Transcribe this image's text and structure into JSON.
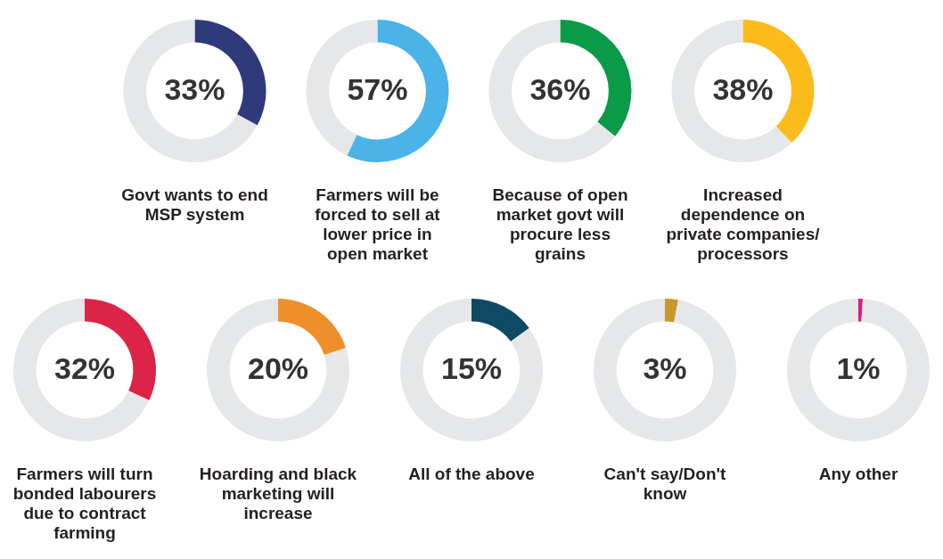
{
  "chart_data": [
    {
      "type": "donut",
      "title": "Govt wants to end MSP system",
      "categories": [
        null,
        null
      ],
      "values": [
        33,
        67
      ],
      "colors": [
        "#2e3a7a",
        "#e6e7e9"
      ],
      "value_labels": [
        "33%",
        null
      ],
      "legend": false
    },
    {
      "type": "donut",
      "title": "Farmers will be forced to sell at lower price in open market",
      "categories": [
        null,
        null
      ],
      "values": [
        57,
        43
      ],
      "colors": [
        "#4ab3e8",
        "#e6e7e9"
      ],
      "value_labels": [
        "57%",
        null
      ],
      "legend": false
    },
    {
      "type": "donut",
      "title": "Because of open market govt will procure less grains",
      "categories": [
        null,
        null
      ],
      "values": [
        36,
        64
      ],
      "colors": [
        "#0a9a48",
        "#e6e7e9"
      ],
      "value_labels": [
        "36%",
        null
      ],
      "legend": false
    },
    {
      "type": "donut",
      "title": "Increased dependence on private companies/ processors",
      "categories": [
        null,
        null
      ],
      "values": [
        38,
        62
      ],
      "colors": [
        "#fbbb1a",
        "#e6e7e9"
      ],
      "value_labels": [
        "38%",
        null
      ],
      "legend": false
    },
    {
      "type": "donut",
      "title": "Farmers will turn bonded labourers due to contract farming",
      "categories": [
        null,
        null
      ],
      "values": [
        32,
        68
      ],
      "colors": [
        "#dc2448",
        "#e6e7e9"
      ],
      "value_labels": [
        "32%",
        null
      ],
      "legend": false
    },
    {
      "type": "donut",
      "title": "Hoarding and black marketing will increase",
      "categories": [
        null,
        null
      ],
      "values": [
        20,
        80
      ],
      "colors": [
        "#ef8f2c",
        "#e6e7e9"
      ],
      "value_labels": [
        "20%",
        null
      ],
      "legend": false
    },
    {
      "type": "donut",
      "title": "All of the above",
      "categories": [
        null,
        null
      ],
      "values": [
        15,
        85
      ],
      "colors": [
        "#0e4a64",
        "#e6e7e9"
      ],
      "value_labels": [
        "15%",
        null
      ],
      "legend": false
    },
    {
      "type": "donut",
      "title": "Can't say/Don't know",
      "categories": [
        null,
        null
      ],
      "values": [
        3,
        97
      ],
      "colors": [
        "#c9982e",
        "#e6e7e9"
      ],
      "value_labels": [
        "3%",
        null
      ],
      "legend": false
    },
    {
      "type": "donut",
      "title": "Any other",
      "categories": [
        null,
        null
      ],
      "values": [
        1,
        99
      ],
      "colors": [
        "#e0197d",
        "#e6e7e9"
      ],
      "value_labels": [
        "1%",
        null
      ],
      "legend": false
    }
  ]
}
